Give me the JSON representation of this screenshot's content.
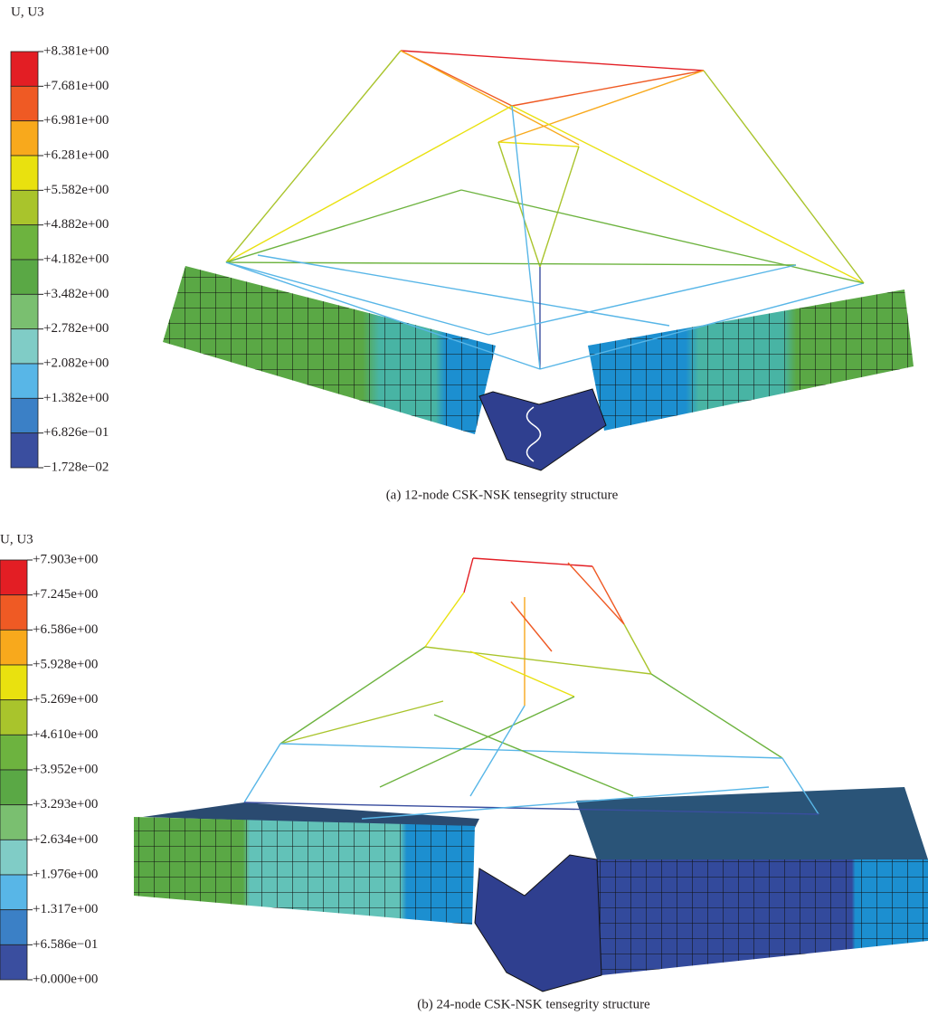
{
  "figures": [
    {
      "legend": {
        "title": "U, U3",
        "labels": [
          "+8.381e+00",
          "+7.681e+00",
          "+6.981e+00",
          "+6.281e+00",
          "+5.582e+00",
          "+4.882e+00",
          "+4.182e+00",
          "+3.482e+00",
          "+2.782e+00",
          "+2.082e+00",
          "+1.382e+00",
          "+6.826e−01",
          "−1.728e−02"
        ],
        "band_colors": [
          "#e31e24",
          "#ef5a24",
          "#f8a91c",
          "#e9e10f",
          "#a9c42c",
          "#6db33f",
          "#5aa845",
          "#7abf70",
          "#80ccc6",
          "#58b6e7",
          "#3b80c6",
          "#3a4e9f"
        ]
      },
      "caption": "(a) 12-node CSK-NSK tensegrity structure"
    },
    {
      "legend": {
        "title": "U, U3",
        "labels": [
          "+7.903e+00",
          "+7.245e+00",
          "+6.586e+00",
          "+5.928e+00",
          "+5.269e+00",
          "+4.610e+00",
          "+3.952e+00",
          "+3.293e+00",
          "+2.634e+00",
          "+1.976e+00",
          "+1.317e+00",
          "+6.586e−01",
          "+0.000e+00"
        ],
        "band_colors": [
          "#e31e24",
          "#ef5a24",
          "#f8a91c",
          "#e9e10f",
          "#a9c42c",
          "#6db33f",
          "#5aa845",
          "#7abf70",
          "#80ccc6",
          "#58b6e7",
          "#3b80c6",
          "#3a4e9f"
        ]
      },
      "caption": "(b) 24-node CSK-NSK tensegrity structure"
    }
  ]
}
